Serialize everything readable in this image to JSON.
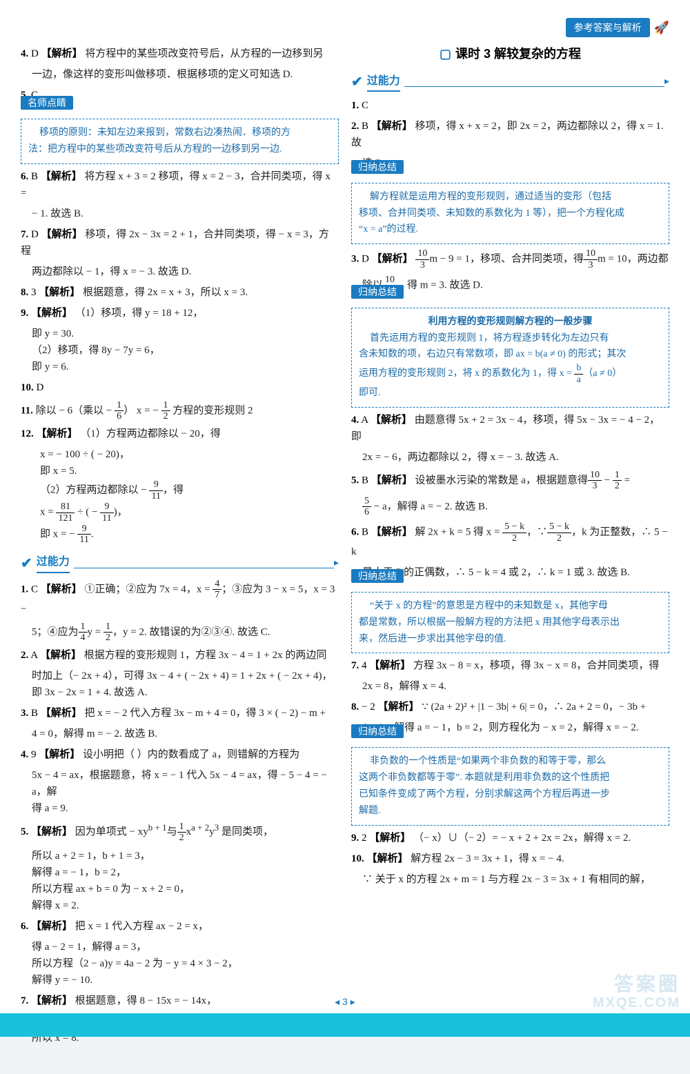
{
  "header": {
    "badge": "参考答案与解析"
  },
  "footer": {
    "pagenum": "3",
    "wm1": "答案圈",
    "wm2": "MXQE.COM"
  },
  "left": {
    "q4": {
      "num": "4.",
      "ans": "D",
      "tag": "【解析】",
      "t1": "将方程中的某些项改变符号后，从方程的一边移到另",
      "t2": "一边，像这样的变形叫做移项．根据移项的定义可知选 D."
    },
    "q5": {
      "num": "5.",
      "ans": "C"
    },
    "box1": {
      "title": "名师点睛",
      "l1": "移项的原则：未知左边来报到，常数右边凑热闹．移项的方",
      "l2": "法：把方程中的某些项改变符号后从方程的一边移到另一边."
    },
    "q6": {
      "num": "6.",
      "ans": "B",
      "tag": "【解析】",
      "t1": "将方程 x + 3 = 2 移项，得 x = 2 − 3，合并同类项，得 x =",
      "t2": "− 1. 故选 B."
    },
    "q7": {
      "num": "7.",
      "ans": "D",
      "tag": "【解析】",
      "t1": "移项，得 2x − 3x = 2 + 1，合并同类项，得 − x = 3，方程",
      "t2": "两边都除以 − 1，得 x = − 3. 故选 D."
    },
    "q8": {
      "num": "8.",
      "ans": "3",
      "tag": "【解析】",
      "t1": "根据题意，得 2x = x + 3，所以 x = 3."
    },
    "q9": {
      "num": "9.",
      "tag": "【解析】",
      "t1": "（1）移项，得 y = 18 + 12，",
      "t2": "即 y = 30.",
      "t3": "（2）移项，得 8y − 7y = 6，",
      "t4": "即 y = 6."
    },
    "q10": {
      "num": "10.",
      "ans": "D"
    },
    "q11": {
      "num": "11.",
      "t1a": "除以 − 6（乘以 − ",
      "t1b": "）    x = − ",
      "t1c": "    方程的变形规则 2"
    },
    "q12": {
      "num": "12.",
      "tag": "【解析】",
      "t1": "（1）方程两边都除以 − 20，得",
      "t2": "x = − 100 ÷ ( − 20)，",
      "t3": "即 x = 5.",
      "t4a": "（2）方程两边都除以 − ",
      "t4b": "，得",
      "t5a": "x = ",
      "t5b": " ÷ ( − ",
      "t5c": ")，",
      "t6a": "即 x = − ",
      "t6b": "."
    },
    "sec1": {
      "name": "过能力"
    },
    "p1": {
      "num": "1.",
      "ans": "C",
      "tag": "【解析】",
      "t1a": "①正确；②应为 7x = 4，x = ",
      "t1b": "；③应为 3 − x = 5，x = 3 −",
      "t2a": "5；④应为",
      "t2b": "y = ",
      "t2c": "，y = 2. 故错误的为②③④. 故选 C."
    },
    "p2": {
      "num": "2.",
      "ans": "A",
      "tag": "【解析】",
      "t1": "根据方程的变形规则 1，方程 3x − 4 = 1 + 2x 的两边同",
      "t2": "时加上（− 2x + 4），可得 3x − 4 + ( − 2x + 4) = 1 + 2x + ( − 2x + 4)，",
      "t3": "即 3x − 2x = 1 + 4. 故选 A."
    },
    "p3": {
      "num": "3.",
      "ans": "B",
      "tag": "【解析】",
      "t1": "把 x = − 2 代入方程 3x − m + 4 = 0，得 3 × ( − 2) − m +",
      "t2": "4 = 0，解得 m = − 2. 故选 B."
    },
    "p4": {
      "num": "4.",
      "ans": "9",
      "tag": "【解析】",
      "t1": "设小明把（    ）内的数看成了 a，则错解的方程为",
      "t2": "5x − 4 = ax，根据题意，将 x = − 1 代入 5x − 4 = ax，得 − 5 − 4 = − a，解",
      "t3": "得 a = 9."
    },
    "p5": {
      "num": "5.",
      "tag": "【解析】",
      "t1a": "因为单项式 − xy",
      "sup1": "b + 1",
      "t1b": "与",
      "t1c": "x",
      "sup2": "a + 2",
      "t1d": "y",
      "sup3": "3",
      "t1e": " 是同类项，",
      "t2": "所以 a + 2 = 1，b + 1 = 3，",
      "t3": "解得 a = − 1，b = 2，",
      "t4": "所以方程 ax + b = 0 为 − x + 2 = 0，",
      "t5": "解得 x = 2."
    },
    "p6": {
      "num": "6.",
      "tag": "【解析】",
      "t1": "把 x = 1 代入方程 ax − 2 = x，",
      "t2": "得 a − 2 = 1，解得 a = 3，",
      "t3": "所以方程（2 − a)y = 4a − 2 为 − y = 4 × 3 − 2，",
      "t4": "解得 y = − 10."
    },
    "p7": {
      "num": "7.",
      "tag": "【解析】",
      "t1": "根据题意，得 8 − 15x = − 14x，",
      "t2": "两边都加上 15x，得 8 − 15x + 15x = − 14x + 15x，即 8 = x，",
      "t3": "所以 x = 8."
    }
  },
  "right": {
    "lesson": {
      "title": "课时 3   解较复杂的方程"
    },
    "sec1": {
      "name": "过能力"
    },
    "r1": {
      "num": "1.",
      "ans": "C"
    },
    "r2": {
      "num": "2.",
      "ans": "B",
      "tag": "【解析】",
      "t1": "移项，得 x + x = 2，即 2x = 2，两边都除以 2，得 x = 1. 故",
      "t2": "选 B."
    },
    "box1": {
      "title": "归纳总结",
      "l1": "解方程就是运用方程的变形规则，通过适当的变形（包括",
      "l2": "移项、合并同类项、未知数的系数化为 1 等），把一个方程化成",
      "l3": "“x = a”的过程."
    },
    "r3": {
      "num": "3.",
      "ans": "D",
      "tag": "【解析】",
      "t1a": "m − 9 = 1，移项、合并同类项，得",
      "t1b": "m = 10，两边都",
      "t2a": "除以",
      "t2b": "，得 m = 3. 故选 D."
    },
    "box2": {
      "title": "归纳总结",
      "h": "利用方程的变形规则解方程的一般步骤",
      "l1": "首先运用方程的变形规则 1，将方程逐步转化为左边只有",
      "l2": "含未知数的项，右边只有常数项，即 ax = b(a ≠ 0) 的形式；其次",
      "l3a": "运用方程的变形规则 2，将 x 的系数化为 1，得 x = ",
      "l3b": "（a ≠ 0）",
      "l4": "即可."
    },
    "r4": {
      "num": "4.",
      "ans": "A",
      "tag": "【解析】",
      "t1": "由题意得 5x + 2 = 3x − 4，移项，得 5x − 3x = − 4 − 2，即",
      "t2": "2x = − 6，两边都除以 2，得 x = − 3. 故选 A."
    },
    "r5": {
      "num": "5.",
      "ans": "B",
      "tag": "【解析】",
      "t1a": "设被墨水污染的常数是 a，根据题意得",
      "t1b": " − ",
      "t1c": " =",
      "t2a": " − a，解得 a = − 2. 故选 B."
    },
    "r6": {
      "num": "6.",
      "ans": "B",
      "tag": "【解析】",
      "t1a": "解 2x + k = 5 得 x = ",
      "t1b": "，∵",
      "t1c": "，k 为正整数，∴ 5 − k",
      "t2": "是小于 5 的正偶数，∴ 5 − k = 4 或 2，∴ k = 1 或 3. 故选 B."
    },
    "box3": {
      "title": "归纳总结",
      "l1": "“关于 x 的方程”的意思是方程中的未知数是 x，其他字母",
      "l2": "都是常数，所以根据一般解方程的方法把 x 用其他字母表示出",
      "l3": "来，然后进一步求出其他字母的值."
    },
    "r7": {
      "num": "7.",
      "ans": "4",
      "tag": "【解析】",
      "t1": "方程 3x − 8 = x，移项，得 3x − x = 8，合并同类项，得",
      "t2": "2x = 8，解得 x = 4."
    },
    "r8": {
      "num": "8.",
      "ans": "− 2",
      "tag": "【解析】",
      "t1": "∵ (2a + 2)² + |1 − 3b| + 6| = 0，∴ 2a + 2 = 0，− 3b +",
      "t2": "6 = 0，解得 a = − 1，b = 2，则方程化为 − x = 2，解得 x = − 2."
    },
    "box4": {
      "title": "归纳总结",
      "l1": "非负数的一个性质是“如果两个非负数的和等于零，那么",
      "l2": "这两个非负数都等于零”. 本题就是利用非负数的这个性质把",
      "l3": "已知条件变成了两个方程，分别求解这两个方程后再进一步",
      "l4": "解题."
    },
    "r9": {
      "num": "9.",
      "ans": "2",
      "tag": "【解析】",
      "t1": "（− x）∪（− 2）= − x + 2 + 2x = 2x，解得 x = 2."
    },
    "r10": {
      "num": "10.",
      "tag": "【解析】",
      "t1": "解方程 2x − 3 = 3x + 1，得 x = − 4.",
      "t2": "∵ 关于 x 的方程 2x + m = 1 与方程 2x − 3 = 3x + 1 有相同的解，"
    }
  }
}
